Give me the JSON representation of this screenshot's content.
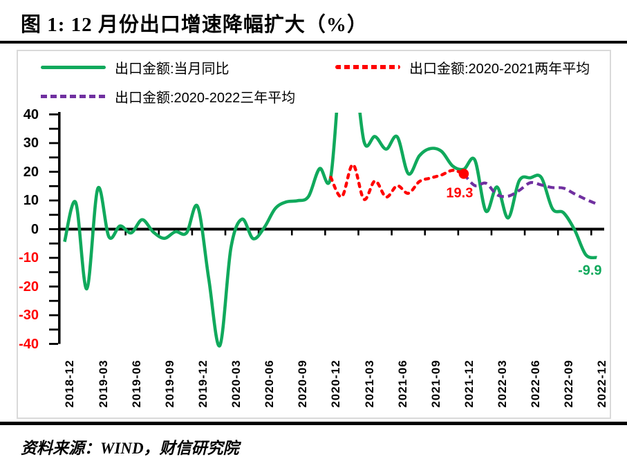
{
  "title": "图 1:  12 月份出口增速降幅扩大（%）",
  "source": "资料来源：WIND，财信研究院",
  "colors": {
    "green": "#10a95c",
    "red": "#ff0000",
    "purple": "#7030a0",
    "axis_black": "#000000",
    "negative_tick_red": "#ff0000",
    "panel_border_gray": "#d9d9d9"
  },
  "legend": [
    {
      "label": "出口金额:当月同比",
      "color": "#10a95c",
      "style": "solid"
    },
    {
      "label": "出口金额:2020-2021两年平均",
      "color": "#ff0000",
      "style": "dotted"
    },
    {
      "label": "出口金额:2020-2022三年平均",
      "color": "#7030a0",
      "style": "dashed"
    }
  ],
  "chart_data": {
    "type": "line",
    "title": "12月份出口增速降幅扩大（%）",
    "xlabel": "",
    "ylabel": "",
    "ylim": [
      -40,
      40
    ],
    "y_ticks": [
      40,
      30,
      20,
      10,
      0,
      -10,
      -20,
      -30,
      -40
    ],
    "grid": false,
    "legend_position": "top",
    "x": [
      "2018-12",
      "2019-01",
      "2019-02",
      "2019-03",
      "2019-04",
      "2019-05",
      "2019-06",
      "2019-07",
      "2019-08",
      "2019-09",
      "2019-10",
      "2019-11",
      "2019-12",
      "2020-01",
      "2020-02",
      "2020-03",
      "2020-04",
      "2020-05",
      "2020-06",
      "2020-07",
      "2020-08",
      "2020-09",
      "2020-10",
      "2020-11",
      "2020-12",
      "2021-01",
      "2021-02",
      "2021-03",
      "2021-04",
      "2021-05",
      "2021-06",
      "2021-07",
      "2021-08",
      "2021-09",
      "2021-10",
      "2021-11",
      "2021-12",
      "2022-01",
      "2022-02",
      "2022-03",
      "2022-04",
      "2022-05",
      "2022-06",
      "2022-07",
      "2022-08",
      "2022-09",
      "2022-10",
      "2022-11",
      "2022-12"
    ],
    "x_tick_labels": [
      "2018-12",
      "2019-03",
      "2019-06",
      "2019-09",
      "2019-12",
      "2020-03",
      "2020-06",
      "2020-09",
      "2020-12",
      "2021-03",
      "2021-06",
      "2021-09",
      "2021-12",
      "2022-03",
      "2022-06",
      "2022-09",
      "2022-12"
    ],
    "series": [
      {
        "name": "出口金额:当月同比",
        "color": "#10a95c",
        "style": "solid",
        "values": [
          -4.4,
          9.3,
          -20.8,
          14.2,
          -2.7,
          1.1,
          -1.3,
          3.3,
          -1.0,
          -3.2,
          -0.9,
          -1.3,
          7.9,
          -17.2,
          -40.6,
          -6.6,
          3.5,
          -3.3,
          0.5,
          7.2,
          9.5,
          9.9,
          11.4,
          21.1,
          18.1,
          60.6,
          60.6,
          30.6,
          32.3,
          27.9,
          32.2,
          19.3,
          25.6,
          28.1,
          27.1,
          22.0,
          20.9,
          24.1,
          6.3,
          14.7,
          3.9,
          16.9,
          17.9,
          18.0,
          7.1,
          5.7,
          -0.3,
          -8.9,
          -9.9
        ]
      },
      {
        "name": "出口金额:2020-2021两年平均",
        "color": "#ff0000",
        "style": "dotted",
        "values": [
          null,
          null,
          null,
          null,
          null,
          null,
          null,
          null,
          null,
          null,
          null,
          null,
          null,
          null,
          null,
          null,
          null,
          null,
          null,
          null,
          null,
          null,
          null,
          null,
          18.1,
          11.3,
          22.5,
          10.4,
          16.8,
          11.2,
          15.1,
          12.5,
          16.6,
          17.8,
          18.9,
          20.5,
          19.3,
          null,
          null,
          null,
          null,
          null,
          null,
          null,
          null,
          null,
          null,
          null,
          null
        ]
      },
      {
        "name": "出口金额:2020-2022三年平均",
        "color": "#7030a0",
        "style": "dashed",
        "values": [
          null,
          null,
          null,
          null,
          null,
          null,
          null,
          null,
          null,
          null,
          null,
          null,
          null,
          null,
          null,
          null,
          null,
          null,
          null,
          null,
          null,
          null,
          null,
          null,
          null,
          null,
          null,
          null,
          null,
          null,
          null,
          null,
          null,
          null,
          null,
          null,
          19.3,
          15.2,
          16.0,
          12.0,
          11.5,
          13.5,
          16.2,
          15.4,
          14.5,
          14.3,
          12.3,
          10.4,
          8.8
        ]
      }
    ],
    "annotations": [
      {
        "text": "19.3",
        "month": "2021-12",
        "value": 19.3,
        "color": "#ff0000",
        "marker": "dot"
      },
      {
        "text": "-9.9",
        "month": "2022-12",
        "value": -9.9,
        "color": "#10a95c",
        "marker": "none"
      }
    ]
  }
}
